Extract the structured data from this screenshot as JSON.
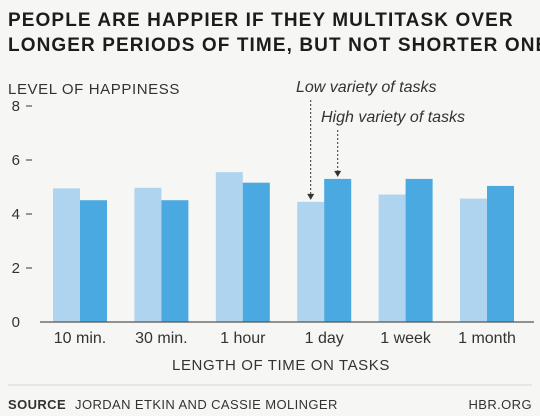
{
  "chart_data": {
    "type": "bar",
    "title_lines": [
      "PEOPLE ARE HAPPIER IF THEY MULTITASK OVER",
      "LONGER PERIODS OF TIME, BUT NOT SHORTER ONES"
    ],
    "ylabel": "LEVEL OF HAPPINESS",
    "xlabel": "LENGTH OF TIME ON TASKS",
    "categories": [
      "10 min.",
      "30 min.",
      "1 hour",
      "1 day",
      "1 week",
      "1 month"
    ],
    "series": [
      {
        "name": "Low variety of tasks",
        "color": "#aed4ef",
        "values": [
          4.95,
          4.97,
          5.55,
          4.45,
          4.72,
          4.57
        ]
      },
      {
        "name": "High variety of tasks",
        "color": "#4aa9e0",
        "values": [
          4.51,
          4.51,
          5.16,
          5.3,
          5.3,
          5.04
        ]
      }
    ],
    "ylim": [
      0,
      8
    ],
    "yticks": [
      0,
      2,
      4,
      6,
      8
    ],
    "grid": false,
    "legend": "annotations above 1 day bars"
  },
  "footer": {
    "source_label": "SOURCE",
    "source_text": "JORDAN ETKIN AND CASSIE MOLINGER",
    "brand": "HBR.ORG"
  },
  "colors": {
    "background": "#f6f6f4",
    "text": "#333333",
    "axis": "#555555"
  }
}
